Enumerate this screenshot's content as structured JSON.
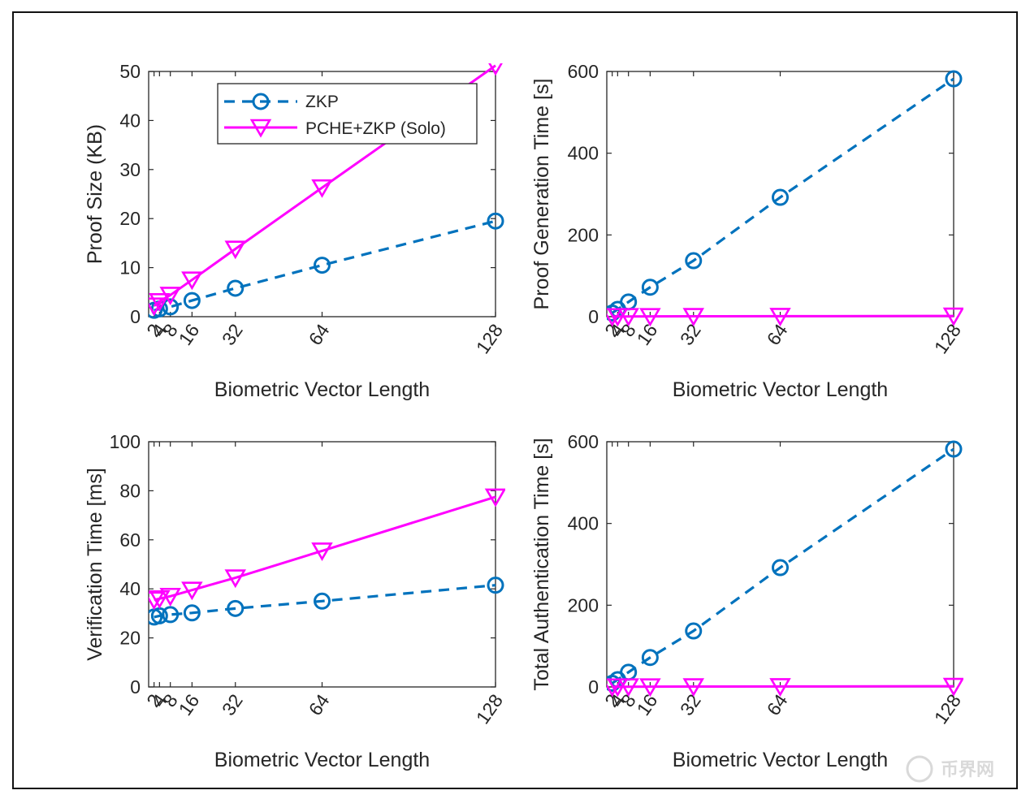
{
  "chart_data": [
    {
      "type": "line",
      "title": "",
      "xlabel": "Biometric Vector Length",
      "ylabel": "Proof Size (KB)",
      "x": [
        2,
        4,
        8,
        16,
        32,
        64,
        128
      ],
      "x_tick_labels": [
        "2",
        "4",
        "8",
        "16",
        "32",
        "64",
        "128"
      ],
      "xlim": [
        0,
        128
      ],
      "ylim": [
        0,
        50
      ],
      "y_ticks": [
        0,
        10,
        20,
        30,
        40,
        50
      ],
      "grid": false,
      "legend": "top-center",
      "series": [
        {
          "name": "ZKP",
          "color": "#0072BD",
          "line": "dashed",
          "marker": "circle",
          "values": [
            1.3,
            1.6,
            2.0,
            3.3,
            5.8,
            10.5,
            19.5
          ]
        },
        {
          "name": "PCHE+ZKP (Solo)",
          "color": "#FF00FF",
          "line": "solid",
          "marker": "triangle-down",
          "values": [
            2.2,
            3.1,
            4.4,
            7.5,
            13.8,
            26.3,
            51.2
          ]
        }
      ]
    },
    {
      "type": "line",
      "title": "",
      "xlabel": "Biometric Vector Length",
      "ylabel": "Proof Generation Time [s]",
      "x": [
        2,
        4,
        8,
        16,
        32,
        64,
        128
      ],
      "x_tick_labels": [
        "2",
        "4",
        "8",
        "16",
        "32",
        "64",
        "128"
      ],
      "xlim": [
        0,
        128
      ],
      "ylim": [
        0,
        600
      ],
      "y_ticks": [
        0,
        200,
        400,
        600
      ],
      "grid": false,
      "series": [
        {
          "name": "ZKP",
          "color": "#0072BD",
          "line": "dashed",
          "marker": "circle",
          "values": [
            9,
            18,
            36,
            72,
            137,
            292,
            582
          ]
        },
        {
          "name": "PCHE+ZKP (Solo)",
          "color": "#FF00FF",
          "line": "solid",
          "marker": "triangle-down",
          "values": [
            0.5,
            0.5,
            0.6,
            0.7,
            0.9,
            1.2,
            1.8
          ]
        }
      ]
    },
    {
      "type": "line",
      "title": "",
      "xlabel": "Biometric Vector Length",
      "ylabel": "Verification Time [ms]",
      "x": [
        2,
        4,
        8,
        16,
        32,
        64,
        128
      ],
      "x_tick_labels": [
        "2",
        "4",
        "8",
        "16",
        "32",
        "64",
        "128"
      ],
      "xlim": [
        0,
        128
      ],
      "ylim": [
        0,
        100
      ],
      "y_ticks": [
        0,
        20,
        40,
        60,
        80,
        100
      ],
      "grid": false,
      "series": [
        {
          "name": "ZKP",
          "color": "#0072BD",
          "line": "dashed",
          "marker": "circle",
          "values": [
            28.5,
            29.0,
            29.5,
            30.2,
            32.0,
            35.0,
            41.5
          ]
        },
        {
          "name": "PCHE+ZKP (Solo)",
          "color": "#FF00FF",
          "line": "solid",
          "marker": "triangle-down",
          "values": [
            35.5,
            36.0,
            37.0,
            39.5,
            44.5,
            55.5,
            77.5
          ]
        }
      ]
    },
    {
      "type": "line",
      "title": "",
      "xlabel": "Biometric Vector Length",
      "ylabel": "Total Authentication Time [s]",
      "x": [
        2,
        4,
        8,
        16,
        32,
        64,
        128
      ],
      "x_tick_labels": [
        "2",
        "4",
        "8",
        "16",
        "32",
        "64",
        "128"
      ],
      "xlim": [
        0,
        128
      ],
      "ylim": [
        0,
        600
      ],
      "y_ticks": [
        0,
        200,
        400,
        600
      ],
      "grid": false,
      "series": [
        {
          "name": "ZKP",
          "color": "#0072BD",
          "line": "dashed",
          "marker": "circle",
          "values": [
            9,
            18,
            36,
            72,
            137,
            292,
            582
          ]
        },
        {
          "name": "PCHE+ZKP (Solo)",
          "color": "#FF00FF",
          "line": "solid",
          "marker": "triangle-down",
          "values": [
            0.5,
            0.5,
            0.6,
            0.7,
            0.9,
            1.2,
            1.8
          ]
        }
      ]
    }
  ],
  "legend": {
    "items": [
      {
        "label": "ZKP"
      },
      {
        "label": "PCHE+ZKP (Solo)"
      }
    ]
  },
  "watermark": {
    "text": "币界网"
  }
}
